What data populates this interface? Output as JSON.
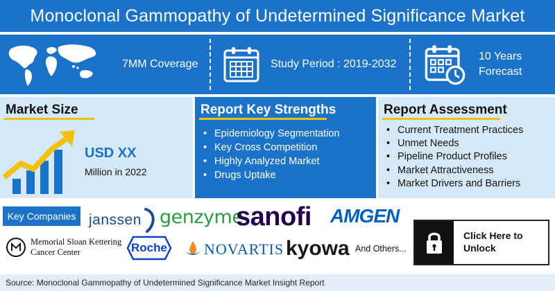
{
  "title": "Monoclonal Gammopathy of Undetermined Significance Market",
  "top_band": {
    "coverage": "7MM Coverage",
    "study_period": "Study Period : 2019-2032",
    "forecast_line1": "10 Years",
    "forecast_line2": "Forecast"
  },
  "market_size": {
    "heading": "Market Size",
    "value": "USD XX",
    "sub": "Million in 2022"
  },
  "key_strengths": {
    "heading": "Report Key Strengths",
    "items": [
      "Epidemiology Segmentation",
      "Key Cross Competition",
      "Highly Analyzed Market",
      "Drugs Uptake"
    ]
  },
  "assessment": {
    "heading": "Report Assessment",
    "items": [
      "Current Treatment Practices",
      "Unmet Needs",
      "Pipeline Product Profiles",
      "Market Attractiveness",
      "Market Drivers and Barriers"
    ]
  },
  "companies": {
    "label": "Key Companies",
    "janssen": "janssen",
    "genzyme": "genzyme",
    "sanofi": "sanofi",
    "amgen": "AMGEN",
    "msk_line1": "Memorial Sloan Kettering",
    "msk_line2": "Cancer Center",
    "roche": "Roche",
    "novartis": "NOVARTIS",
    "kyowa": "kyowa",
    "others": "And Others..."
  },
  "unlock": {
    "line1": "Click Here to",
    "line2": "Unlock"
  },
  "source": "Source: Monoclonal Gammopathy of Undetermined Significance Market Insight Report",
  "colors": {
    "primary_blue": "#1a73c9",
    "light_blue": "#d6e9f8",
    "accent_yellow": "#f2c10f",
    "sanofi_purple": "#23004c",
    "amgen_blue": "#0063c3",
    "roche_blue": "#0b41cd",
    "novartis_blue": "#0460a9",
    "janssen_blue": "#1a4a8f"
  },
  "icons": [
    "world-map-icon",
    "calendar-icon",
    "calendar-clock-icon",
    "growth-chart-icon",
    "lock-icon"
  ]
}
